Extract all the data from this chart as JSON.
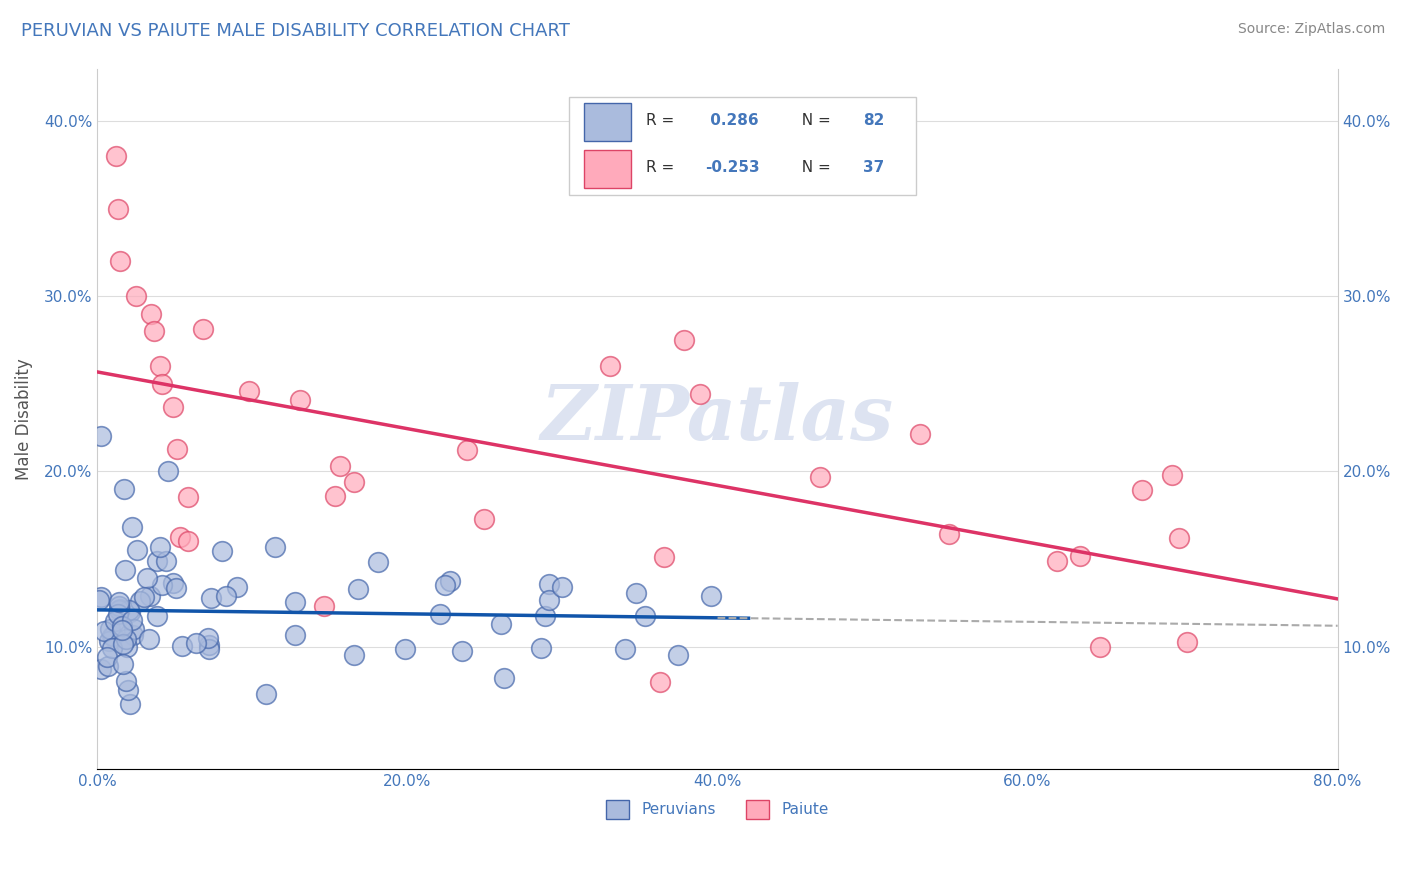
{
  "title": "PERUVIAN VS PAIUTE MALE DISABILITY CORRELATION CHART",
  "source": "Source: ZipAtlas.com",
  "xlabel_vals": [
    0.0,
    20.0,
    40.0,
    60.0,
    80.0
  ],
  "ylabel_vals": [
    10.0,
    20.0,
    30.0,
    40.0
  ],
  "xmin": 0.0,
  "xmax": 80.0,
  "ymin": 3.0,
  "ymax": 43.0,
  "ylabel": "Male Disability",
  "peruvian_color": "#AABBDD",
  "paiute_color": "#FFAABB",
  "peruvian_edge": "#4466AA",
  "paiute_edge": "#DD4466",
  "R_peruvian": 0.286,
  "N_peruvian": 82,
  "R_paiute": -0.253,
  "N_paiute": 37,
  "peruvian_trend_color": "#1155AA",
  "paiute_trend_color": "#DD3366",
  "watermark_color": "#AABBDD",
  "background_color": "#FFFFFF",
  "grid_color": "#DDDDDD",
  "dashed_line_color": "#AAAAAA",
  "legend_box_color": "#EEEEEE",
  "text_color": "#4477BB",
  "title_color": "#4477BB"
}
